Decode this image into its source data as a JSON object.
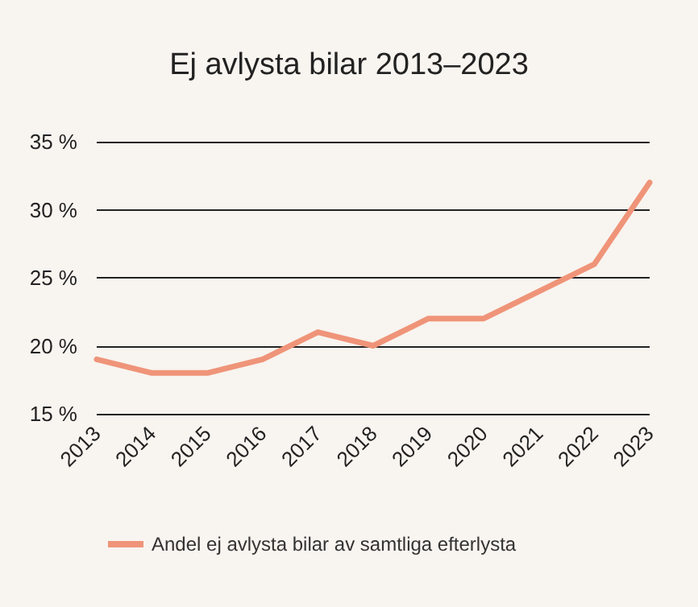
{
  "chart_data": {
    "type": "line",
    "title": "Ej avlysta bilar 2013–2023",
    "categories": [
      "2013",
      "2014",
      "2015",
      "2016",
      "2017",
      "2018",
      "2019",
      "2020",
      "2021",
      "2022",
      "2023"
    ],
    "series": [
      {
        "name": "Andel ej avlysta bilar av samtliga efterlysta",
        "color": "#ef9479",
        "values": [
          19,
          18,
          18,
          19,
          21,
          20,
          22,
          22,
          24,
          26,
          32
        ]
      }
    ],
    "ylim": [
      15,
      35
    ],
    "yticks": [
      {
        "value": 15,
        "label": "15 %"
      },
      {
        "value": 20,
        "label": "20 %"
      },
      {
        "value": 25,
        "label": "25 %"
      },
      {
        "value": 30,
        "label": "30 %"
      },
      {
        "value": 35,
        "label": "35 %"
      }
    ],
    "grid": "y",
    "legend": "bottom",
    "marker": "none",
    "line_style": "solid"
  }
}
